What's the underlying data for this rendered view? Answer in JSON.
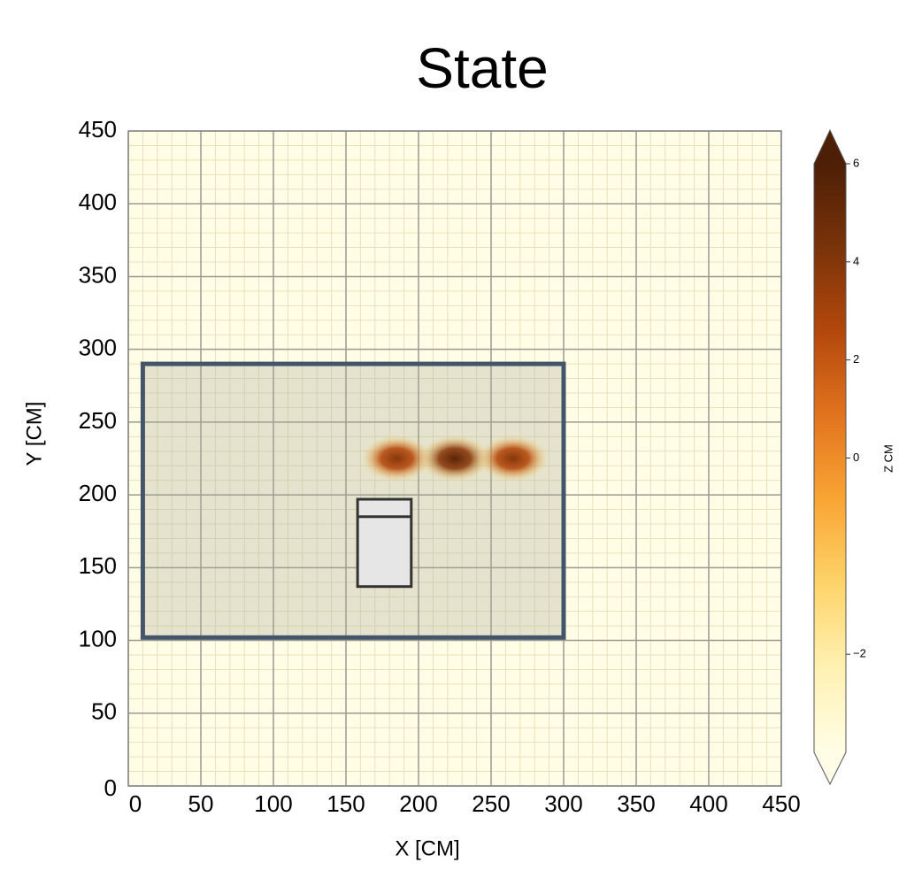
{
  "chart_data": {
    "type": "heatmap",
    "title": "State",
    "xlabel": "X [CM]",
    "ylabel": "Y [CM]",
    "xlim": [
      0,
      450
    ],
    "ylim": [
      0,
      450
    ],
    "xticks": [
      0,
      50,
      100,
      150,
      200,
      250,
      300,
      350,
      400,
      450
    ],
    "yticks": [
      0,
      50,
      100,
      150,
      200,
      250,
      300,
      350,
      400,
      450
    ],
    "grid": true,
    "minor_divisions": 5,
    "peaks": {
      "x": [
        185,
        225,
        265
      ],
      "y": [
        225,
        225,
        225
      ],
      "z": [
        4,
        5.5,
        4
      ]
    },
    "room": {
      "x": [
        10,
        300
      ],
      "y": [
        102,
        290
      ]
    },
    "bed": {
      "x": [
        158,
        195
      ],
      "y": [
        137,
        197
      ],
      "head": 185
    },
    "colorbar": {
      "label": "Z CM",
      "lim": [
        -3,
        6
      ],
      "vcenter": 0,
      "extend": "both",
      "ticks": [
        6,
        4,
        2,
        0,
        {
          "value": -2,
          "label": "−2"
        }
      ],
      "colors": [
        "#fffde6",
        "#fff1b3",
        "#fdd46a",
        "#f9a534",
        "#e2741f",
        "#b4480c",
        "#7a330a",
        "#4d1f06"
      ]
    }
  }
}
